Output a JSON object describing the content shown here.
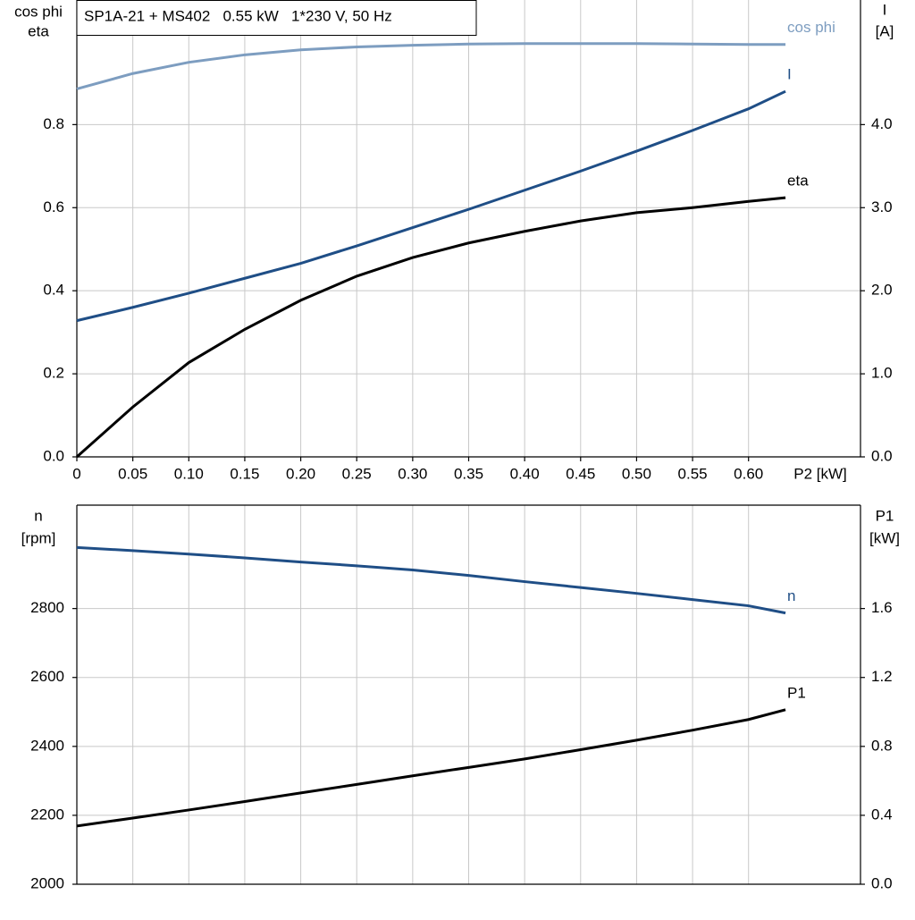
{
  "title": "SP1A-21 + MS402   0.55 kW   1*230 V, 50 Hz",
  "chart_data": [
    {
      "type": "line",
      "ylabel": [
        "cos phi",
        "eta"
      ],
      "y2label": [
        "I",
        "[A]"
      ],
      "xlabel": "P2 [kW]",
      "x": [
        0,
        0.05,
        0.1,
        0.15,
        0.2,
        0.25,
        0.3,
        0.35,
        0.4,
        0.45,
        0.5,
        0.55,
        0.6,
        0.633
      ],
      "xlim": [
        0,
        0.7
      ],
      "xticks": [
        0,
        0.05,
        {
          "value": 0.1,
          "label": "0.10"
        },
        0.15,
        {
          "value": 0.2,
          "label": "0.20"
        },
        0.25,
        {
          "value": 0.3,
          "label": "0.30"
        },
        0.35,
        {
          "value": 0.4,
          "label": "0.40"
        },
        0.45,
        {
          "value": 0.5,
          "label": "0.50"
        },
        0.55,
        {
          "value": 0.6,
          "label": "0.60"
        }
      ],
      "ylim": [
        0,
        1.1
      ],
      "yticks": [
        {
          "value": 0,
          "label": "0.0"
        },
        0.2,
        0.4,
        0.6,
        0.8
      ],
      "y2lim": [
        0,
        5.5
      ],
      "y2ticks": [
        {
          "value": 0,
          "label": "0.0"
        },
        {
          "value": 1,
          "label": "1.0"
        },
        {
          "value": 2,
          "label": "2.0"
        },
        {
          "value": 3,
          "label": "3.0"
        },
        {
          "value": 4,
          "label": "4.0"
        }
      ],
      "grid": true,
      "series": [
        {
          "name": "cos phi",
          "color": "#7d9dc0",
          "values": [
            0.886,
            0.923,
            0.95,
            0.968,
            0.98,
            0.987,
            0.991,
            0.994,
            0.995,
            0.995,
            0.995,
            0.994,
            0.993,
            0.993
          ]
        },
        {
          "name": "I",
          "color": "#1f4e86",
          "axis": "y2",
          "values": [
            1.64,
            1.8,
            1.97,
            2.15,
            2.33,
            2.54,
            2.76,
            2.98,
            3.21,
            3.44,
            3.68,
            3.93,
            4.19,
            4.4
          ]
        },
        {
          "name": "eta",
          "color": "#000000",
          "values": [
            0,
            0.12,
            0.227,
            0.307,
            0.377,
            0.435,
            0.48,
            0.515,
            0.543,
            0.568,
            0.588,
            0.6,
            0.615,
            0.624
          ]
        }
      ]
    },
    {
      "type": "line",
      "ylabel": [
        "n",
        "[rpm]"
      ],
      "y2label": [
        "P1",
        "[kW]"
      ],
      "x": [
        0,
        0.05,
        0.1,
        0.15,
        0.2,
        0.25,
        0.3,
        0.35,
        0.4,
        0.45,
        0.5,
        0.55,
        0.6,
        0.633
      ],
      "xlim": [
        0,
        0.7
      ],
      "ylim": [
        2000,
        3100
      ],
      "yticks": [
        2000,
        2200,
        2400,
        2600,
        2800
      ],
      "y2lim": [
        0,
        2.2
      ],
      "y2ticks": [
        {
          "value": 0,
          "label": "0.0"
        },
        0.4,
        0.8,
        1.2,
        1.6
      ],
      "grid": true,
      "series": [
        {
          "name": "n",
          "color": "#1f4e86",
          "values": [
            2977,
            2968,
            2958,
            2947,
            2935,
            2924,
            2912,
            2896,
            2878,
            2861,
            2844,
            2826,
            2808,
            2787
          ]
        },
        {
          "name": "P1",
          "color": "#000000",
          "axis": "y2",
          "values": [
            0.338,
            0.384,
            0.431,
            0.48,
            0.53,
            0.579,
            0.629,
            0.678,
            0.727,
            0.781,
            0.836,
            0.894,
            0.956,
            1.013
          ]
        }
      ]
    }
  ]
}
